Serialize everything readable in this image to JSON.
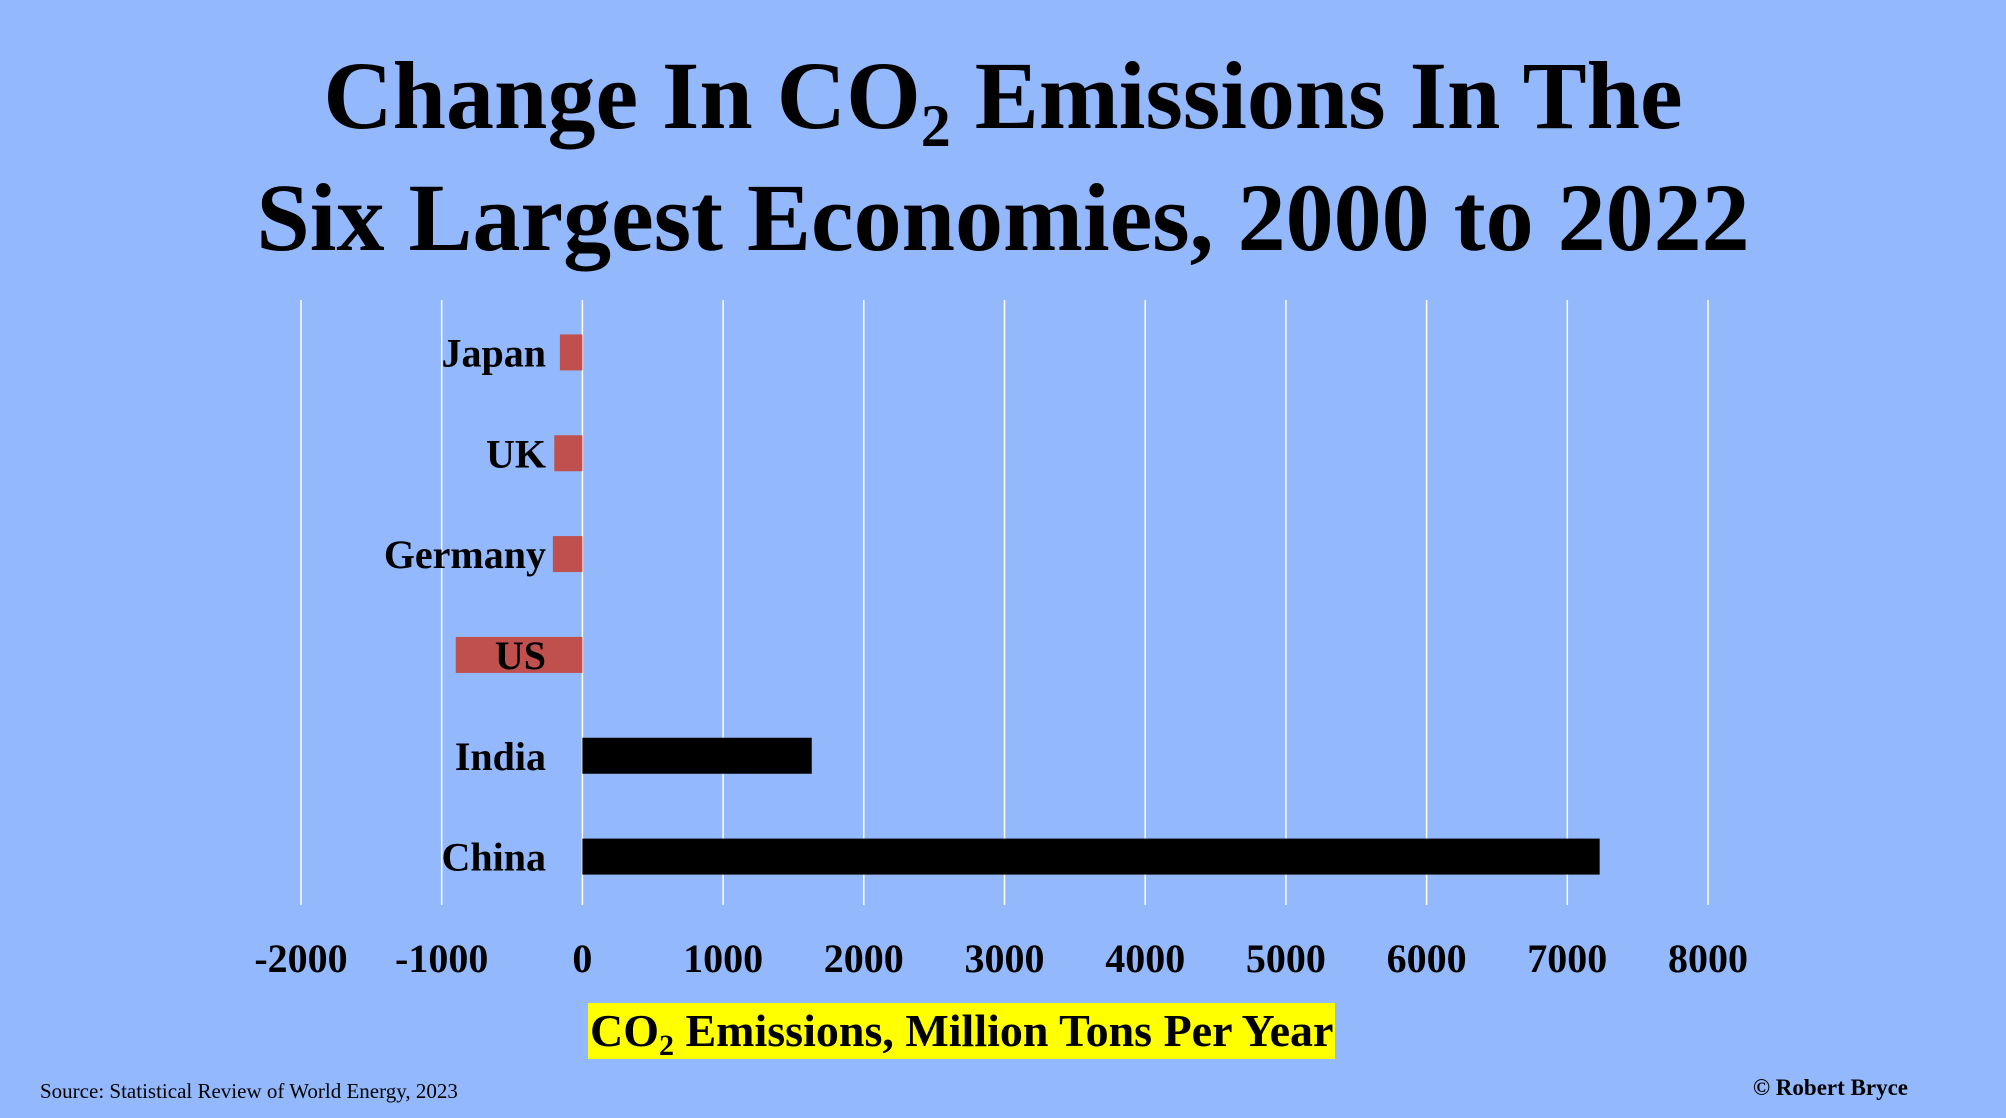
{
  "title": {
    "line1_before": "Change In CO",
    "line1_sub": "2",
    "line1_after": " Emissions In The",
    "line2": "Six Largest Economies, 2000 to 2022"
  },
  "chart_data": {
    "type": "bar",
    "orientation": "horizontal",
    "categories": [
      "Japan",
      "UK",
      "Germany",
      "US",
      "India",
      "China"
    ],
    "values": [
      -160,
      -200,
      -210,
      -900,
      1630,
      7230
    ],
    "bar_colors": [
      "#c0504d",
      "#c0504d",
      "#c0504d",
      "#c0504d",
      "#000000",
      "#000000"
    ],
    "xlim": [
      -2000,
      8000
    ],
    "x_ticks": [
      "-2000",
      "-1000",
      "0",
      "1000",
      "2000",
      "3000",
      "4000",
      "5000",
      "6000",
      "7000",
      "8000"
    ],
    "xlabel_before": "CO",
    "xlabel_sub": "2",
    "xlabel_after": " Emissions, Million Tons Per Year",
    "grid": true,
    "legend": "none"
  },
  "footer": {
    "source": "Source: Statistical Review of World Energy, 2023",
    "credit": "© Robert Bryce"
  },
  "colors": {
    "background": "#94b8fc",
    "negative": "#c0504d",
    "positive": "#000000",
    "label_highlight": "#ffff00",
    "grid": "#ffffff"
  }
}
